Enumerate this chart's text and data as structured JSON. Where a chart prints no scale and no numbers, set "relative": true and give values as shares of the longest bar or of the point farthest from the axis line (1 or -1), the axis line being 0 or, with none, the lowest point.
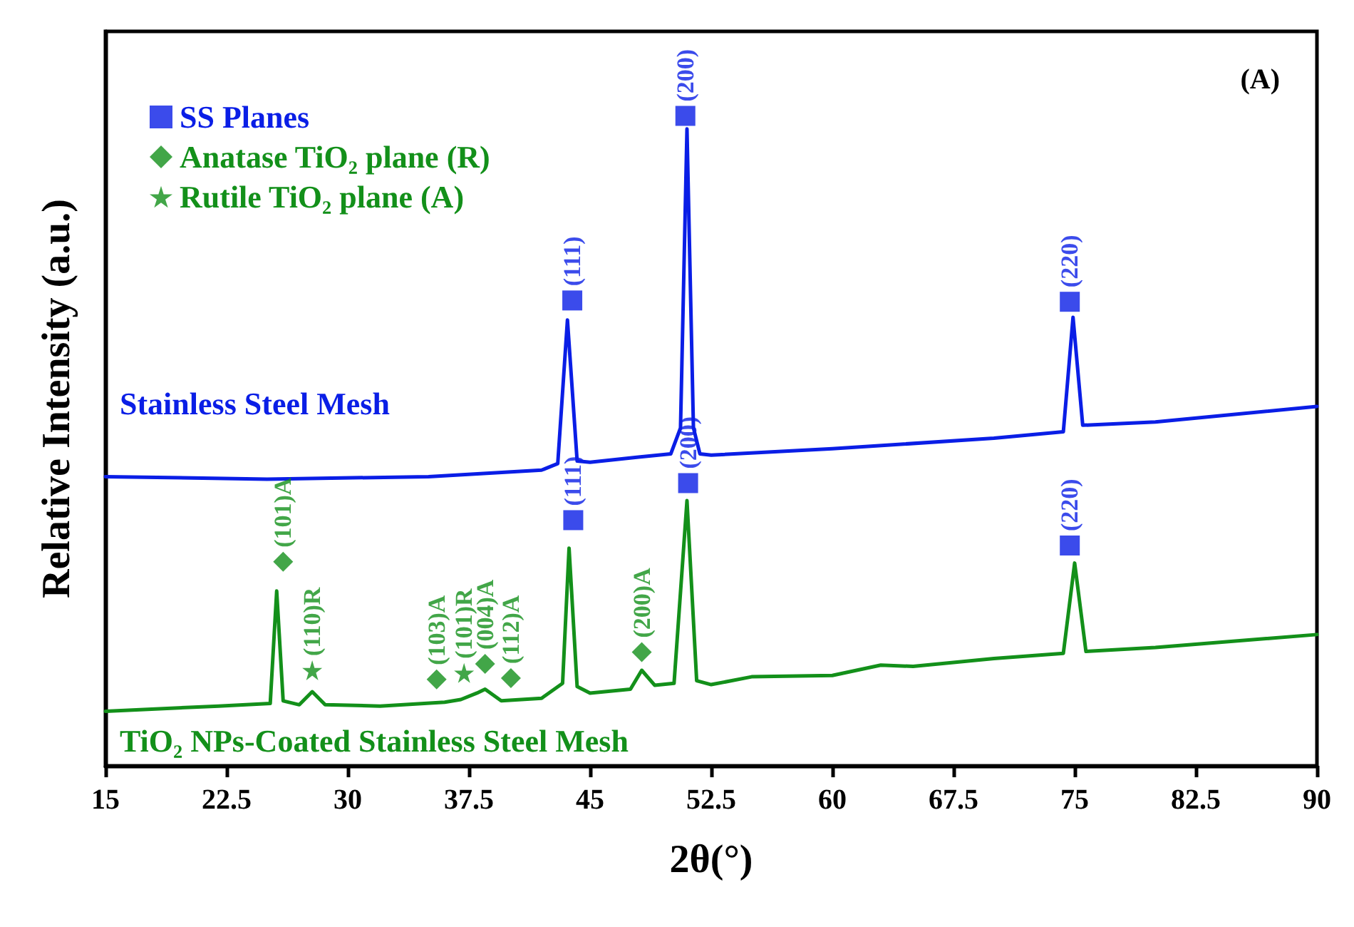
{
  "chart_data": {
    "type": "line",
    "relative": true,
    "xlabel": "2θ(°)",
    "ylabel": "Relative Intensity (a.u.)",
    "xlim": [
      15,
      90
    ],
    "xticks": [
      15,
      22.5,
      30,
      37.5,
      45,
      52.5,
      60,
      67.5,
      75,
      82.5,
      90
    ],
    "grid": false,
    "legend": "top left",
    "series": [
      {
        "name": "Stainless Steel Mesh",
        "color": "#0a1ee6",
        "x": [
          15,
          25,
          35,
          42,
          43,
          43.6,
          44.2,
          45,
          48,
          50,
          50.6,
          51,
          51.4,
          51.8,
          52.5,
          60,
          70,
          74.3,
          74.9,
          75.5,
          80,
          90
        ],
        "values": [
          0.445,
          0.441,
          0.445,
          0.455,
          0.465,
          0.686,
          0.469,
          0.467,
          0.475,
          0.48,
          0.52,
          0.98,
          0.52,
          0.48,
          0.478,
          0.488,
          0.504,
          0.514,
          0.69,
          0.524,
          0.529,
          0.553
        ]
      },
      {
        "name": "TiO₂ NPs-Coated Stainless Steel Mesh",
        "color": "#13901a",
        "x": [
          15,
          22,
          25.2,
          25.6,
          26,
          27,
          27.8,
          28.6,
          32,
          36,
          37,
          38,
          38.5,
          39.5,
          42,
          43.3,
          43.7,
          44.2,
          45,
          47.5,
          48.2,
          49,
          50.2,
          51,
          51.6,
          52.5,
          55,
          60,
          63,
          65,
          70,
          74.3,
          75,
          75.7,
          80,
          90
        ],
        "values": [
          0.084,
          0.092,
          0.096,
          0.269,
          0.1,
          0.094,
          0.114,
          0.094,
          0.092,
          0.098,
          0.102,
          0.112,
          0.118,
          0.1,
          0.104,
          0.127,
          0.335,
          0.122,
          0.112,
          0.118,
          0.147,
          0.124,
          0.127,
          0.408,
          0.131,
          0.125,
          0.137,
          0.139,
          0.155,
          0.153,
          0.165,
          0.173,
          0.312,
          0.176,
          0.182,
          0.202
        ]
      },
      {
        "name": "SS Planes",
        "type": "scatter",
        "marker": "square",
        "color": "#0a1ee6",
        "x": [
          43.9,
          50.9,
          74.7,
          43.96,
          51.07,
          74.7
        ],
        "values": [
          0.716,
          1.0,
          0.714,
          0.378,
          0.435,
          0.339
        ]
      },
      {
        "name": "Anatase TiO₂ plane (R)",
        "type": "scatter",
        "marker": "diamond",
        "color": "#13901a",
        "x": [
          26.0,
          35.5,
          38.5,
          40.1,
          48.2
        ],
        "values": [
          0.314,
          0.133,
          0.157,
          0.135,
          0.175
        ]
      },
      {
        "name": "Rutile TiO₂ plane (A)",
        "type": "scatter",
        "marker": "star",
        "color": "#13901a",
        "x": [
          27.8,
          37.2
        ],
        "values": [
          0.147,
          0.143
        ]
      }
    ],
    "annotations": [
      "(A)",
      {
        "text": "(111)",
        "x": 43.9,
        "y": 0.716
      },
      {
        "text": "(200)",
        "x": 50.9,
        "y": 1.0
      },
      {
        "text": "(220)",
        "x": 74.7,
        "y": 0.714
      },
      {
        "text": "(111)",
        "x": 43.96,
        "y": 0.378
      },
      {
        "text": "(200)",
        "x": 51.07,
        "y": 0.435
      },
      {
        "text": "(220)",
        "x": 74.7,
        "y": 0.339
      },
      {
        "text": "(101)A",
        "x": 26.0,
        "y": 0.314
      },
      {
        "text": "(110)R",
        "x": 27.8,
        "y": 0.147
      },
      {
        "text": "(103)A",
        "x": 35.5,
        "y": 0.133
      },
      {
        "text": "(101)R",
        "x": 37.2,
        "y": 0.143
      },
      {
        "text": "(004)A",
        "x": 38.5,
        "y": 0.157
      },
      {
        "text": "(112)A",
        "x": 40.1,
        "y": 0.135
      },
      {
        "text": "(200)A",
        "x": 48.2,
        "y": 0.175
      }
    ]
  }
}
